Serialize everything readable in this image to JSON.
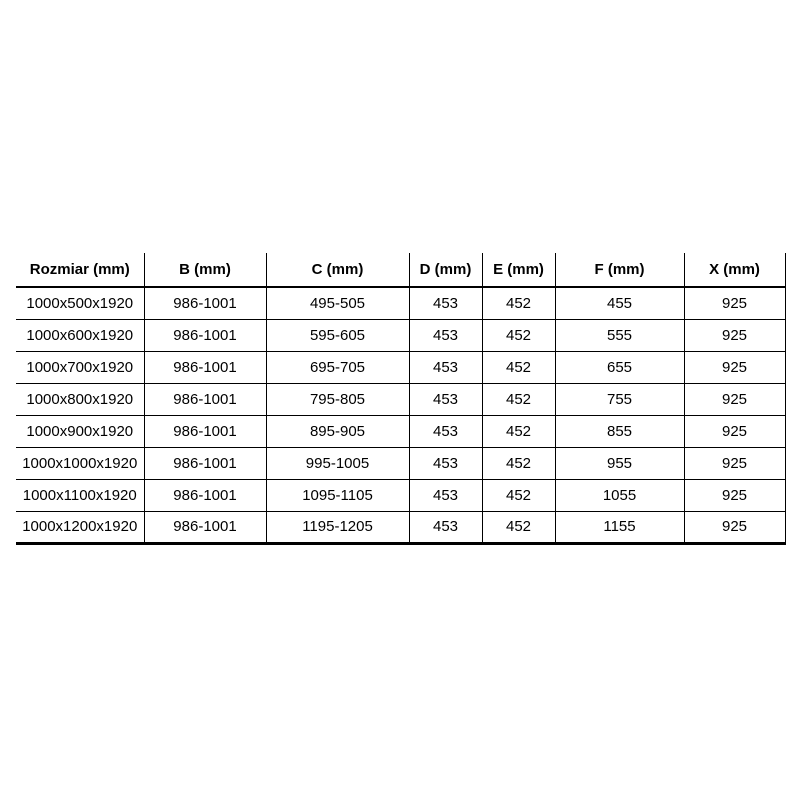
{
  "page": {
    "background_color": "#ffffff"
  },
  "size_table": {
    "text_color": "#000000",
    "border_color": "#000000",
    "header": [
      "Rozmiar (mm)",
      "B (mm)",
      "C (mm)",
      "D (mm)",
      "E (mm)",
      "F (mm)",
      "X (mm)"
    ],
    "rows": [
      [
        "1000x500x1920",
        "986-1001",
        "495-505",
        "453",
        "452",
        "455",
        "925"
      ],
      [
        "1000x600x1920",
        "986-1001",
        "595-605",
        "453",
        "452",
        "555",
        "925"
      ],
      [
        "1000x700x1920",
        "986-1001",
        "695-705",
        "453",
        "452",
        "655",
        "925"
      ],
      [
        "1000x800x1920",
        "986-1001",
        "795-805",
        "453",
        "452",
        "755",
        "925"
      ],
      [
        "1000x900x1920",
        "986-1001",
        "895-905",
        "453",
        "452",
        "855",
        "925"
      ],
      [
        "1000x1000x1920",
        "986-1001",
        "995-1005",
        "453",
        "452",
        "955",
        "925"
      ],
      [
        "1000x1100x1920",
        "986-1001",
        "1095-1105",
        "453",
        "452",
        "1055",
        "925"
      ],
      [
        "1000x1200x1920",
        "986-1001",
        "1195-1205",
        "453",
        "452",
        "1155",
        "925"
      ]
    ]
  }
}
